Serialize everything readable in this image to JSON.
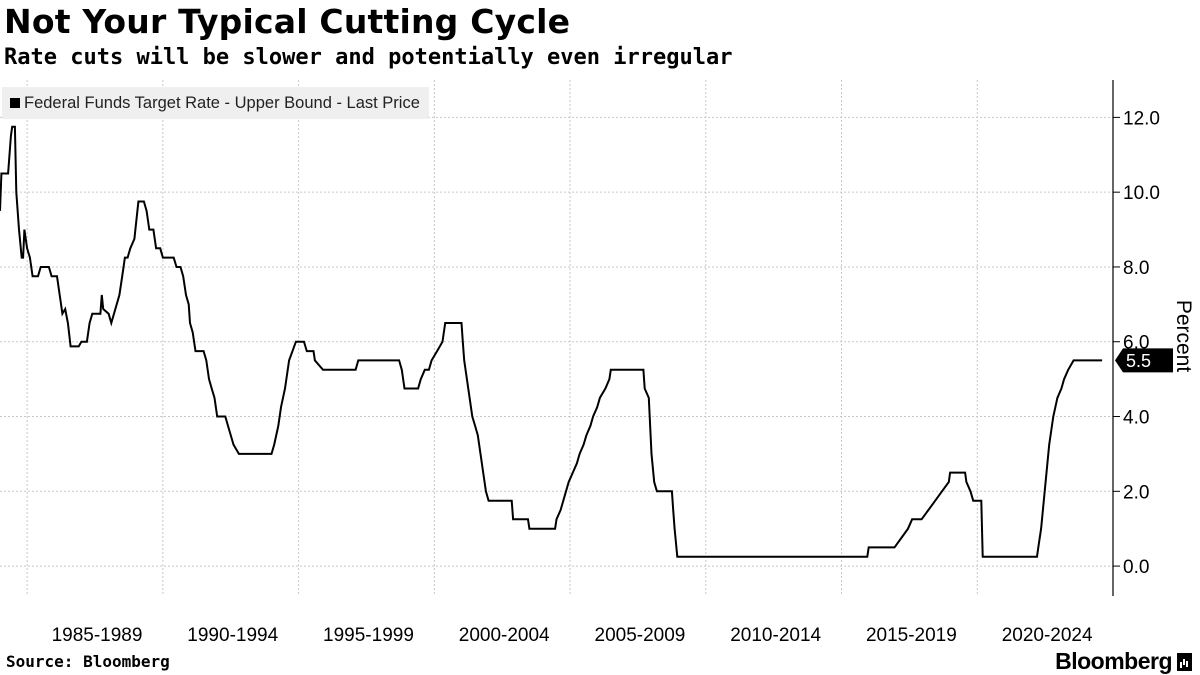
{
  "chart_data": {
    "type": "line",
    "title": "Not Your Typical Cutting Cycle",
    "subtitle": "Rate cuts will be slower and potentially even irregular",
    "ylabel": "Percent",
    "xlabel": "",
    "ylim": [
      -0.8,
      13
    ],
    "yticks": [
      0,
      2,
      4,
      6,
      8,
      10,
      12
    ],
    "ytick_labels": [
      "0.0",
      "2.0",
      "4.0",
      "6.0",
      "8.0",
      "10.0",
      "12.0"
    ],
    "xlim": [
      1984.0,
      2025.0
    ],
    "xtick_labels": [
      "1985-1989",
      "1990-1994",
      "1995-1999",
      "2000-2004",
      "2005-2009",
      "2010-2014",
      "2015-2019",
      "2020-2024"
    ],
    "xtick_centers": [
      1987.5,
      1992.5,
      1997.5,
      2002.5,
      2007.5,
      2012.5,
      2017.5,
      2022.5
    ],
    "grid": true,
    "legend": "top-left",
    "last_value_label": "5.5",
    "series": [
      {
        "name": "Federal Funds Target Rate - Upper Bound - Last Price",
        "color": "#000000",
        "points": [
          [
            1984.0,
            9.5
          ],
          [
            1984.05,
            10.5
          ],
          [
            1984.3,
            10.5
          ],
          [
            1984.4,
            11.5
          ],
          [
            1984.45,
            11.75
          ],
          [
            1984.55,
            11.75
          ],
          [
            1984.6,
            10.0
          ],
          [
            1984.7,
            9.0
          ],
          [
            1984.8,
            8.25
          ],
          [
            1984.85,
            8.25
          ],
          [
            1984.9,
            9.0
          ],
          [
            1985.0,
            8.5
          ],
          [
            1985.1,
            8.25
          ],
          [
            1985.2,
            7.75
          ],
          [
            1985.4,
            7.75
          ],
          [
            1985.5,
            8.0
          ],
          [
            1985.8,
            8.0
          ],
          [
            1985.9,
            7.75
          ],
          [
            1986.1,
            7.75
          ],
          [
            1986.2,
            7.25
          ],
          [
            1986.3,
            6.75
          ],
          [
            1986.4,
            6.875
          ],
          [
            1986.5,
            6.5
          ],
          [
            1986.6,
            5.875
          ],
          [
            1986.9,
            5.875
          ],
          [
            1987.0,
            6.0
          ],
          [
            1987.2,
            6.0
          ],
          [
            1987.3,
            6.5
          ],
          [
            1987.4,
            6.75
          ],
          [
            1987.7,
            6.75
          ],
          [
            1987.75,
            7.25
          ],
          [
            1987.8,
            6.875
          ],
          [
            1988.0,
            6.75
          ],
          [
            1988.1,
            6.5
          ],
          [
            1988.2,
            6.75
          ],
          [
            1988.4,
            7.25
          ],
          [
            1988.5,
            7.75
          ],
          [
            1988.6,
            8.25
          ],
          [
            1988.7,
            8.25
          ],
          [
            1988.8,
            8.5
          ],
          [
            1988.95,
            8.75
          ],
          [
            1989.1,
            9.75
          ],
          [
            1989.3,
            9.75
          ],
          [
            1989.4,
            9.5
          ],
          [
            1989.5,
            9.0
          ],
          [
            1989.65,
            9.0
          ],
          [
            1989.75,
            8.5
          ],
          [
            1989.9,
            8.5
          ],
          [
            1990.0,
            8.25
          ],
          [
            1990.4,
            8.25
          ],
          [
            1990.5,
            8.0
          ],
          [
            1990.65,
            8.0
          ],
          [
            1990.75,
            7.75
          ],
          [
            1990.85,
            7.25
          ],
          [
            1990.95,
            7.0
          ],
          [
            1991.0,
            6.5
          ],
          [
            1991.1,
            6.25
          ],
          [
            1991.2,
            5.75
          ],
          [
            1991.5,
            5.75
          ],
          [
            1991.6,
            5.5
          ],
          [
            1991.7,
            5.0
          ],
          [
            1991.8,
            4.75
          ],
          [
            1991.9,
            4.5
          ],
          [
            1992.0,
            4.0
          ],
          [
            1992.3,
            4.0
          ],
          [
            1992.4,
            3.75
          ],
          [
            1992.6,
            3.25
          ],
          [
            1992.8,
            3.0
          ],
          [
            1994.0,
            3.0
          ],
          [
            1994.1,
            3.25
          ],
          [
            1994.25,
            3.75
          ],
          [
            1994.35,
            4.25
          ],
          [
            1994.5,
            4.75
          ],
          [
            1994.65,
            5.5
          ],
          [
            1994.9,
            6.0
          ],
          [
            1995.2,
            6.0
          ],
          [
            1995.3,
            5.75
          ],
          [
            1995.55,
            5.75
          ],
          [
            1995.6,
            5.5
          ],
          [
            1995.9,
            5.25
          ],
          [
            1997.1,
            5.25
          ],
          [
            1997.2,
            5.5
          ],
          [
            1998.7,
            5.5
          ],
          [
            1998.8,
            5.25
          ],
          [
            1998.9,
            4.75
          ],
          [
            1999.4,
            4.75
          ],
          [
            1999.5,
            5.0
          ],
          [
            1999.65,
            5.25
          ],
          [
            1999.8,
            5.25
          ],
          [
            1999.9,
            5.5
          ],
          [
            2000.1,
            5.75
          ],
          [
            2000.3,
            6.0
          ],
          [
            2000.4,
            6.5
          ],
          [
            2001.0,
            6.5
          ],
          [
            2001.05,
            6.0
          ],
          [
            2001.1,
            5.5
          ],
          [
            2001.2,
            5.0
          ],
          [
            2001.3,
            4.5
          ],
          [
            2001.4,
            4.0
          ],
          [
            2001.5,
            3.75
          ],
          [
            2001.6,
            3.5
          ],
          [
            2001.7,
            3.0
          ],
          [
            2001.8,
            2.5
          ],
          [
            2001.9,
            2.0
          ],
          [
            2002.0,
            1.75
          ],
          [
            2002.85,
            1.75
          ],
          [
            2002.9,
            1.25
          ],
          [
            2003.45,
            1.25
          ],
          [
            2003.5,
            1.0
          ],
          [
            2004.45,
            1.0
          ],
          [
            2004.5,
            1.25
          ],
          [
            2004.65,
            1.5
          ],
          [
            2004.75,
            1.75
          ],
          [
            2004.85,
            2.0
          ],
          [
            2004.95,
            2.25
          ],
          [
            2005.1,
            2.5
          ],
          [
            2005.25,
            2.75
          ],
          [
            2005.35,
            3.0
          ],
          [
            2005.5,
            3.25
          ],
          [
            2005.6,
            3.5
          ],
          [
            2005.75,
            3.75
          ],
          [
            2005.85,
            4.0
          ],
          [
            2006.0,
            4.25
          ],
          [
            2006.1,
            4.5
          ],
          [
            2006.3,
            4.75
          ],
          [
            2006.45,
            5.0
          ],
          [
            2006.5,
            5.25
          ],
          [
            2007.7,
            5.25
          ],
          [
            2007.75,
            4.75
          ],
          [
            2007.9,
            4.5
          ],
          [
            2008.0,
            3.0
          ],
          [
            2008.1,
            2.25
          ],
          [
            2008.2,
            2.0
          ],
          [
            2008.75,
            2.0
          ],
          [
            2008.8,
            1.5
          ],
          [
            2008.85,
            1.0
          ],
          [
            2008.95,
            0.25
          ],
          [
            2015.95,
            0.25
          ],
          [
            2016.0,
            0.5
          ],
          [
            2016.95,
            0.5
          ],
          [
            2017.2,
            0.75
          ],
          [
            2017.45,
            1.0
          ],
          [
            2017.6,
            1.25
          ],
          [
            2017.95,
            1.25
          ],
          [
            2018.2,
            1.5
          ],
          [
            2018.45,
            1.75
          ],
          [
            2018.7,
            2.0
          ],
          [
            2018.95,
            2.25
          ],
          [
            2019.0,
            2.5
          ],
          [
            2019.55,
            2.5
          ],
          [
            2019.6,
            2.25
          ],
          [
            2019.75,
            2.0
          ],
          [
            2019.85,
            1.75
          ],
          [
            2020.15,
            1.75
          ],
          [
            2020.2,
            0.25
          ],
          [
            2022.2,
            0.25
          ],
          [
            2022.25,
            0.5
          ],
          [
            2022.35,
            1.0
          ],
          [
            2022.45,
            1.75
          ],
          [
            2022.55,
            2.5
          ],
          [
            2022.65,
            3.25
          ],
          [
            2022.8,
            4.0
          ],
          [
            2022.95,
            4.5
          ],
          [
            2023.1,
            4.75
          ],
          [
            2023.2,
            5.0
          ],
          [
            2023.35,
            5.25
          ],
          [
            2023.55,
            5.5
          ],
          [
            2024.6,
            5.5
          ]
        ]
      }
    ]
  },
  "source_label": "Source: Bloomberg",
  "brand": "Bloomberg"
}
